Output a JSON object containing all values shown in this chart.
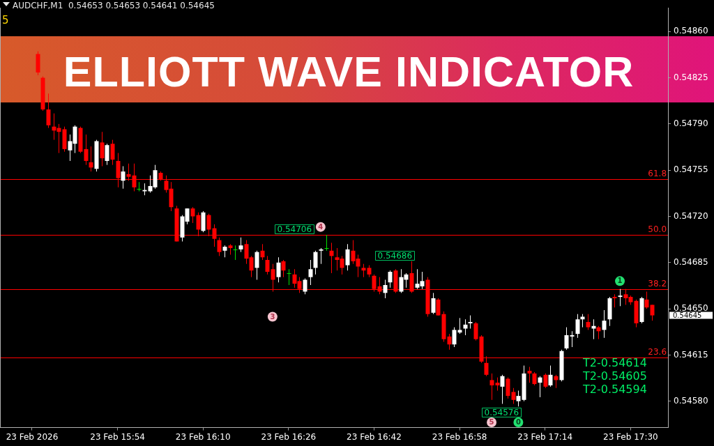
{
  "chart_data": {
    "type": "candlestick",
    "title": "ELLIOTT WAVE INDICATOR",
    "subtitle": "AUDCHF,M1  0.54653 0.54653 0.54641 0.54645",
    "x": [
      "2026-02-23T15:39",
      "2026-02-23T15:40",
      "2026-02-23T15:41",
      "2026-02-23T15:42",
      "2026-02-23T15:43",
      "2026-02-23T15:44",
      "2026-02-23T15:45",
      "2026-02-23T15:46",
      "2026-02-23T15:47",
      "2026-02-23T15:48",
      "2026-02-23T15:49",
      "2026-02-23T15:50",
      "2026-02-23T15:51",
      "2026-02-23T15:52",
      "2026-02-23T15:53",
      "2026-02-23T15:54",
      "2026-02-23T15:55",
      "2026-02-23T15:56",
      "2026-02-23T15:57",
      "2026-02-23T15:58",
      "2026-02-23T15:59",
      "2026-02-23T16:00",
      "2026-02-23T16:01",
      "2026-02-23T16:02",
      "2026-02-23T16:03",
      "2026-02-23T16:04",
      "2026-02-23T16:05",
      "2026-02-23T16:06",
      "2026-02-23T16:07",
      "2026-02-23T16:08",
      "2026-02-23T16:09",
      "2026-02-23T16:10",
      "2026-02-23T16:11",
      "2026-02-23T16:12",
      "2026-02-23T16:13",
      "2026-02-23T16:14",
      "2026-02-23T16:15",
      "2026-02-23T16:16",
      "2026-02-23T16:17",
      "2026-02-23T16:18",
      "2026-02-23T16:19",
      "2026-02-23T16:20",
      "2026-02-23T16:21",
      "2026-02-23T16:22",
      "2026-02-23T16:23",
      "2026-02-23T16:24",
      "2026-02-23T16:25",
      "2026-02-23T16:26",
      "2026-02-23T16:27",
      "2026-02-23T16:28",
      "2026-02-23T16:29",
      "2026-02-23T16:30",
      "2026-02-23T16:31",
      "2026-02-23T16:32",
      "2026-02-23T16:33",
      "2026-02-23T16:34",
      "2026-02-23T16:35",
      "2026-02-23T16:36",
      "2026-02-23T16:37",
      "2026-02-23T16:38",
      "2026-02-23T16:39",
      "2026-02-23T16:40",
      "2026-02-23T16:41",
      "2026-02-23T16:42",
      "2026-02-23T16:43",
      "2026-02-23T16:44",
      "2026-02-23T16:45",
      "2026-02-23T16:46",
      "2026-02-23T16:47",
      "2026-02-23T16:48",
      "2026-02-23T16:49",
      "2026-02-23T16:50",
      "2026-02-23T16:51",
      "2026-02-23T16:52",
      "2026-02-23T16:53",
      "2026-02-23T16:54",
      "2026-02-23T16:55",
      "2026-02-23T16:56",
      "2026-02-23T16:57",
      "2026-02-23T16:58",
      "2026-02-23T16:59",
      "2026-02-23T17:00",
      "2026-02-23T17:01",
      "2026-02-23T17:02",
      "2026-02-23T17:03",
      "2026-02-23T17:04",
      "2026-02-23T17:05",
      "2026-02-23T17:06",
      "2026-02-23T17:07",
      "2026-02-23T17:08",
      "2026-02-23T17:09",
      "2026-02-23T17:10",
      "2026-02-23T17:11",
      "2026-02-23T17:12",
      "2026-02-23T17:13",
      "2026-02-23T17:14",
      "2026-02-23T17:15",
      "2026-02-23T17:16",
      "2026-02-23T17:17",
      "2026-02-23T17:18",
      "2026-02-23T17:19",
      "2026-02-23T17:20",
      "2026-02-23T17:21",
      "2026-02-23T17:22",
      "2026-02-23T17:23",
      "2026-02-23T17:24",
      "2026-02-23T17:25",
      "2026-02-23T17:26",
      "2026-02-23T17:27",
      "2026-02-23T17:28",
      "2026-02-23T17:29",
      "2026-02-23T17:30",
      "2026-02-23T17:31",
      "2026-02-23T17:32",
      "2026-02-23T17:33",
      "2026-02-23T17:34"
    ],
    "ohlc": [
      [
        0.54843,
        0.54845,
        0.54827,
        0.54829
      ],
      [
        0.54825,
        0.54826,
        0.548,
        0.54801
      ],
      [
        0.54801,
        0.54813,
        0.54787,
        0.54789
      ],
      [
        0.54788,
        0.54798,
        0.54778,
        0.54785
      ],
      [
        0.54787,
        0.5479,
        0.54768,
        0.54784
      ],
      [
        0.54786,
        0.54788,
        0.54769,
        0.54771
      ],
      [
        0.5477,
        0.54782,
        0.54762,
        0.54777
      ],
      [
        0.54775,
        0.54789,
        0.54768,
        0.54788
      ],
      [
        0.54787,
        0.54788,
        0.54768,
        0.54769
      ],
      [
        0.54771,
        0.54782,
        0.54759,
        0.54762
      ],
      [
        0.54761,
        0.54773,
        0.54754,
        0.54757
      ],
      [
        0.54756,
        0.54778,
        0.54754,
        0.54777
      ],
      [
        0.54776,
        0.54784,
        0.54758,
        0.54764
      ],
      [
        0.54762,
        0.54775,
        0.54759,
        0.54774
      ],
      [
        0.54775,
        0.54778,
        0.54759,
        0.54763
      ],
      [
        0.54762,
        0.54768,
        0.54742,
        0.54749
      ],
      [
        0.54747,
        0.54758,
        0.54741,
        0.54754
      ],
      [
        0.54752,
        0.5476,
        0.54747,
        0.5475
      ],
      [
        0.54751,
        0.5476,
        0.54739,
        0.54742
      ],
      [
        0.54741,
        0.54746,
        0.54739,
        0.54741
      ],
      [
        0.54739,
        0.54745,
        0.54736,
        0.5474
      ],
      [
        0.54739,
        0.54751,
        0.54738,
        0.54743
      ],
      [
        0.54742,
        0.54759,
        0.54741,
        0.54755
      ],
      [
        0.54753,
        0.54754,
        0.54747,
        0.54748
      ],
      [
        0.54747,
        0.54751,
        0.54738,
        0.5474
      ],
      [
        0.54741,
        0.54746,
        0.54724,
        0.54727
      ],
      [
        0.54726,
        0.54728,
        0.54701,
        0.54701
      ],
      [
        0.54704,
        0.54721,
        0.54701,
        0.5472
      ],
      [
        0.54716,
        0.54726,
        0.54714,
        0.54726
      ],
      [
        0.54726,
        0.54727,
        0.54715,
        0.5472
      ],
      [
        0.54721,
        0.54723,
        0.54705,
        0.5471
      ],
      [
        0.54709,
        0.54724,
        0.54708,
        0.54723
      ],
      [
        0.54721,
        0.54722,
        0.54705,
        0.5471
      ],
      [
        0.54711,
        0.54714,
        0.54697,
        0.54703
      ],
      [
        0.54702,
        0.54704,
        0.5469,
        0.54693
      ],
      [
        0.54694,
        0.54698,
        0.54689,
        0.54697
      ],
      [
        0.54698,
        0.54699,
        0.54691,
        0.54696
      ],
      [
        0.54695,
        0.54698,
        0.54687,
        0.54695
      ],
      [
        0.54695,
        0.54704,
        0.54693,
        0.54698
      ],
      [
        0.54699,
        0.54702,
        0.54684,
        0.54688
      ],
      [
        0.54689,
        0.5469,
        0.54674,
        0.54679
      ],
      [
        0.54681,
        0.54694,
        0.54672,
        0.54693
      ],
      [
        0.54694,
        0.54699,
        0.54687,
        0.54689
      ],
      [
        0.54687,
        0.5469,
        0.54676,
        0.54678
      ],
      [
        0.5468,
        0.54684,
        0.54663,
        0.54672
      ],
      [
        0.54674,
        0.54689,
        0.5467,
        0.54685
      ],
      [
        0.54686,
        0.54687,
        0.54674,
        0.54679
      ],
      [
        0.54677,
        0.5468,
        0.54668,
        0.54677
      ],
      [
        0.54676,
        0.5468,
        0.54666,
        0.54669
      ],
      [
        0.54671,
        0.54674,
        0.54662,
        0.54665
      ],
      [
        0.54663,
        0.54673,
        0.54661,
        0.54672
      ],
      [
        0.54674,
        0.54687,
        0.54668,
        0.5468
      ],
      [
        0.54681,
        0.54694,
        0.54676,
        0.54693
      ],
      [
        0.54694,
        0.54696,
        0.54684,
        0.54695
      ],
      [
        0.54696,
        0.54706,
        0.54694,
        0.54696
      ],
      [
        0.54694,
        0.547,
        0.54677,
        0.5469
      ],
      [
        0.54689,
        0.54696,
        0.54679,
        0.54687
      ],
      [
        0.54688,
        0.5469,
        0.54676,
        0.54681
      ],
      [
        0.54683,
        0.54699,
        0.54679,
        0.54695
      ],
      [
        0.54694,
        0.54702,
        0.54684,
        0.54686
      ],
      [
        0.54688,
        0.54691,
        0.54674,
        0.54682
      ],
      [
        0.54681,
        0.54684,
        0.54674,
        0.54679
      ],
      [
        0.54681,
        0.54683,
        0.54674,
        0.54676
      ],
      [
        0.54675,
        0.54676,
        0.54663,
        0.54665
      ],
      [
        0.54667,
        0.54674,
        0.54661,
        0.54663
      ],
      [
        0.54662,
        0.54672,
        0.54658,
        0.54668
      ],
      [
        0.5467,
        0.54679,
        0.54666,
        0.54678
      ],
      [
        0.54679,
        0.5468,
        0.54662,
        0.54663
      ],
      [
        0.54663,
        0.5468,
        0.54662,
        0.54674
      ],
      [
        0.54672,
        0.54677,
        0.54666,
        0.54676
      ],
      [
        0.54677,
        0.54686,
        0.54662,
        0.54663
      ],
      [
        0.54666,
        0.5468,
        0.54665,
        0.54669
      ],
      [
        0.54667,
        0.54678,
        0.54665,
        0.54671
      ],
      [
        0.54672,
        0.54674,
        0.54644,
        0.54646
      ],
      [
        0.54647,
        0.54662,
        0.54646,
        0.54658
      ],
      [
        0.54657,
        0.54658,
        0.54645,
        0.54645
      ],
      [
        0.54646,
        0.54648,
        0.54625,
        0.54627
      ],
      [
        0.54629,
        0.54631,
        0.54619,
        0.54623
      ],
      [
        0.54623,
        0.54636,
        0.54621,
        0.54634
      ],
      [
        0.54632,
        0.54643,
        0.54631,
        0.54634
      ],
      [
        0.54635,
        0.54642,
        0.5463,
        0.54638
      ],
      [
        0.54639,
        0.54645,
        0.54635,
        0.5464
      ],
      [
        0.54639,
        0.5464,
        0.54626,
        0.54627
      ],
      [
        0.54629,
        0.5463,
        0.54609,
        0.5461
      ],
      [
        0.54609,
        0.54614,
        0.54599,
        0.546
      ],
      [
        0.54596,
        0.54601,
        0.54581,
        0.54592
      ],
      [
        0.54594,
        0.54598,
        0.54588,
        0.54592
      ],
      [
        0.54591,
        0.546,
        0.54578,
        0.54599
      ],
      [
        0.54597,
        0.54598,
        0.54582,
        0.54584
      ],
      [
        0.54587,
        0.5459,
        0.54578,
        0.54581
      ],
      [
        0.5458,
        0.54588,
        0.54576,
        0.54584
      ],
      [
        0.54581,
        0.54607,
        0.5458,
        0.54601
      ],
      [
        0.54603,
        0.54606,
        0.54594,
        0.54601
      ],
      [
        0.54601,
        0.54602,
        0.54592,
        0.54593
      ],
      [
        0.54594,
        0.54599,
        0.54583,
        0.54598
      ],
      [
        0.546,
        0.54601,
        0.5459,
        0.54591
      ],
      [
        0.54592,
        0.54607,
        0.54591,
        0.546
      ],
      [
        0.54599,
        0.546,
        0.5459,
        0.54596
      ],
      [
        0.54596,
        0.54619,
        0.54595,
        0.54618
      ],
      [
        0.5462,
        0.54636,
        0.54619,
        0.5463
      ],
      [
        0.54629,
        0.54633,
        0.54621,
        0.5463
      ],
      [
        0.54631,
        0.54646,
        0.54628,
        0.54642
      ],
      [
        0.54642,
        0.54646,
        0.54636,
        0.54644
      ],
      [
        0.5464,
        0.54646,
        0.54634,
        0.54636
      ],
      [
        0.54635,
        0.54642,
        0.54627,
        0.54637
      ],
      [
        0.54636,
        0.54637,
        0.54627,
        0.54633
      ],
      [
        0.54634,
        0.54649,
        0.54628,
        0.54641
      ],
      [
        0.54642,
        0.54659,
        0.54637,
        0.54658
      ],
      [
        0.54659,
        0.54661,
        0.54651,
        0.54658
      ],
      [
        0.54659,
        0.54665,
        0.54652,
        0.5466
      ],
      [
        0.54661,
        0.54665,
        0.54653,
        0.54658
      ],
      [
        0.54659,
        0.5466,
        0.54653,
        0.54655
      ],
      [
        0.54656,
        0.54657,
        0.54636,
        0.54639
      ],
      [
        0.5464,
        0.54659,
        0.54639,
        0.54658
      ],
      [
        0.54657,
        0.54663,
        0.5465,
        0.54651
      ],
      [
        0.54653,
        0.54653,
        0.54641,
        0.54645
      ]
    ],
    "colors": [
      "#ff0000",
      "#ff0000",
      "#ff0000",
      "#ff0000",
      "#ff0000",
      "#ff0000",
      "#ffffff",
      "#ffffff",
      "#ff0000",
      "#ff0000",
      "#ff0000",
      "#ffffff",
      "#ff0000",
      "#ffffff",
      "#ff0000",
      "#ff0000",
      "#ffffff",
      "#ff0000",
      "#ff0000",
      "#00e000",
      "#ffffff",
      "#ffffff",
      "#ffffff",
      "#ff0000",
      "#ff0000",
      "#ff0000",
      "#ff0000",
      "#ffffff",
      "#ffffff",
      "#ff0000",
      "#ff0000",
      "#ffffff",
      "#ff0000",
      "#ff0000",
      "#ff0000",
      "#ffffff",
      "#ff0000",
      "#00e000",
      "#ffffff",
      "#ff0000",
      "#ff0000",
      "#ffffff",
      "#ff0000",
      "#ff0000",
      "#ff0000",
      "#ffffff",
      "#ff0000",
      "#00e000",
      "#ff0000",
      "#ff0000",
      "#ffffff",
      "#ffffff",
      "#ffffff",
      "#ffffff",
      "#00e000",
      "#ff0000",
      "#ff0000",
      "#ff0000",
      "#ffffff",
      "#ff0000",
      "#ff0000",
      "#ff0000",
      "#ff0000",
      "#ff0000",
      "#ff0000",
      "#ffffff",
      "#ffffff",
      "#ff0000",
      "#ffffff",
      "#ffffff",
      "#ff0000",
      "#ffffff",
      "#ffffff",
      "#ff0000",
      "#ffffff",
      "#ff0000",
      "#ff0000",
      "#ff0000",
      "#ffffff",
      "#ffffff",
      "#ffffff",
      "#ffffff",
      "#ff0000",
      "#ff0000",
      "#ff0000",
      "#ff0000",
      "#ff0000",
      "#ffffff",
      "#ff0000",
      "#ff0000",
      "#ffffff",
      "#ffffff",
      "#ff0000",
      "#ff0000",
      "#ffffff",
      "#ff0000",
      "#ffffff",
      "#ff0000",
      "#ffffff",
      "#ffffff",
      "#ffffff",
      "#ffffff",
      "#ffffff",
      "#ff0000",
      "#ffffff",
      "#ff0000",
      "#ffffff",
      "#ffffff",
      "#ff0000",
      "#ffffff",
      "#ff0000",
      "#ff0000",
      "#ff0000",
      "#ffffff",
      "#ff0000",
      "#ff0000"
    ],
    "xlim": [
      "2026-02-23T15:32",
      "2026-02-23T17:37"
    ],
    "xticks": [
      {
        "value": "2026-02-23T15:38",
        "label": "23 Feb 2026"
      },
      {
        "value": "2026-02-23T15:54",
        "label": "23 Feb 15:54"
      },
      {
        "value": "2026-02-23T16:10",
        "label": "23 Feb 16:10"
      },
      {
        "value": "2026-02-23T16:26",
        "label": "23 Feb 16:26"
      },
      {
        "value": "2026-02-23T16:42",
        "label": "23 Feb 16:42"
      },
      {
        "value": "2026-02-23T16:58",
        "label": "23 Feb 16:58"
      },
      {
        "value": "2026-02-23T17:14",
        "label": "23 Feb 17:14"
      },
      {
        "value": "2026-02-23T17:30",
        "label": "23 Feb 17:30"
      }
    ],
    "ylim": [
      0.5456,
      0.54878
    ],
    "yticks": [
      {
        "value": 0.5486,
        "label": "0.54860"
      },
      0.54825,
      {
        "value": 0.5479,
        "label": "0.54790"
      },
      0.54755,
      {
        "value": 0.5472,
        "label": "0.54720"
      },
      0.54685,
      {
        "value": 0.5465,
        "label": "0.54650"
      },
      0.54615,
      {
        "value": 0.5458,
        "label": "0.54580"
      }
    ],
    "ref_lines": [
      {
        "axis": "y",
        "value": 0.54748,
        "color": "#ff0000"
      },
      {
        "axis": "y",
        "value": 0.54706,
        "color": "#ff0000"
      },
      {
        "axis": "y",
        "value": 0.54665,
        "color": "#ff0000"
      },
      {
        "axis": "y",
        "value": 0.54613,
        "color": "#ff0000"
      }
    ],
    "annotations": [
      "5",
      {
        "text": "3",
        "x": "2026-02-23T16:23",
        "y": 0.54644
      },
      {
        "text": "4",
        "x": "2026-02-23T16:32",
        "y": 0.54712
      },
      {
        "text": "5",
        "x": "2026-02-23T17:04",
        "y": 0.54564
      },
      {
        "text": "0",
        "x": "2026-02-23T17:09",
        "y": 0.54564
      },
      {
        "text": "1",
        "x": "2026-02-23T17:28",
        "y": 0.54671
      },
      {
        "text": "0.54706",
        "x": "2026-02-23T16:33",
        "y": 0.54706
      },
      {
        "text": "0.54686",
        "x": "2026-02-23T16:49",
        "y": 0.54686
      },
      {
        "text": "0.54576",
        "x": "2026-02-23T17:09",
        "y": 0.54576
      },
      "T2-0.54614",
      "T2-0.54605",
      "T2-0.54594",
      {
        "text": "0.54645",
        "x": "2026-02-23T17:34",
        "y": 0.54645
      },
      {
        "text": "61.8",
        "x": "2026-02-23T17:35",
        "y": 0.54748
      },
      {
        "text": "50.0",
        "x": "2026-02-23T17:35",
        "y": 0.54706
      },
      {
        "text": "38.2",
        "x": "2026-02-23T17:35",
        "y": 0.54665
      },
      {
        "text": "23.6",
        "x": "2026-02-23T17:35",
        "y": 0.54613
      }
    ]
  }
}
